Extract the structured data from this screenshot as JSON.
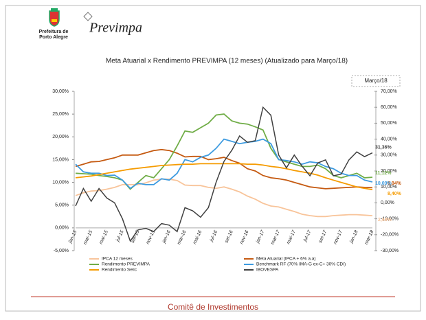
{
  "header": {
    "org_line1": "Prefeitura de",
    "org_line2": "Porto Alegre",
    "brand": "Previmpa"
  },
  "footer": "Comitê de Investimentos",
  "chart_data": {
    "type": "line",
    "title": "Meta Atuarial x Rendimento PREVIMPA (12 meses) (Atualizado para Março/18)",
    "annotation": "Março/18",
    "categories": [
      "jan-15",
      null,
      "mar-15",
      null,
      "mai-15",
      null,
      "jul-15",
      null,
      "set-15",
      null,
      "nov-15",
      null,
      "jan-16",
      null,
      "mar-16",
      null,
      "mai-16",
      null,
      "jul-16",
      null,
      "set-16",
      null,
      "nov-16",
      null,
      "jan-17",
      null,
      "mar-17",
      null,
      "mai-17",
      null,
      "jul-17",
      null,
      "set-17",
      null,
      "nov-17",
      null,
      "jan-18",
      null,
      "mar-18"
    ],
    "ylim": [
      -5,
      30
    ],
    "yticks": [
      {
        "value": -5,
        "label": "-5,00%"
      },
      {
        "value": 0,
        "label": "0,00%"
      },
      {
        "value": 5,
        "label": "5,00%"
      },
      {
        "value": 10,
        "label": "10,00%"
      },
      {
        "value": 15,
        "label": "15,00%"
      },
      {
        "value": 20,
        "label": "20,00%"
      },
      {
        "value": 25,
        "label": "25,00%"
      },
      {
        "value": 30,
        "label": "30,00%"
      }
    ],
    "y2lim": [
      -30,
      70
    ],
    "y2ticks": [
      {
        "value": -30,
        "label": "-30,00%"
      },
      {
        "value": -20,
        "label": "-20,00%"
      },
      {
        "value": -10,
        "label": "-10,00%"
      },
      {
        "value": 0,
        "label": "0,00%"
      },
      {
        "value": 10,
        "label": "10,00%"
      },
      {
        "value": 20,
        "label": "20,00%"
      },
      {
        "value": 30,
        "label": "30,00%"
      },
      {
        "value": 40,
        "label": "40,00%"
      },
      {
        "value": 50,
        "label": "50,00%"
      },
      {
        "value": 60,
        "label": "60,00%"
      },
      {
        "value": 70,
        "label": "70,00%"
      }
    ],
    "grid": false,
    "legend": "bottom",
    "series": [
      {
        "name": "IPCA 12 meses",
        "color": "#f8c49a",
        "values": [
          7.1,
          7.7,
          8.1,
          8.2,
          8.5,
          8.9,
          9.5,
          9.5,
          9.5,
          9.9,
          10.5,
          10.7,
          10.7,
          10.4,
          9.4,
          9.3,
          9.3,
          8.9,
          8.7,
          9.0,
          8.5,
          7.9,
          7.0,
          6.3,
          5.4,
          4.8,
          4.6,
          4.1,
          3.6,
          3.0,
          2.7,
          2.5,
          2.5,
          2.7,
          2.8,
          2.9,
          2.9,
          2.8,
          2.68
        ],
        "value_labels": [
          null,
          null,
          null,
          null,
          null,
          null,
          null,
          null,
          null,
          null,
          null,
          null,
          null,
          null,
          null,
          null,
          null,
          null,
          null,
          null,
          null,
          null,
          null,
          null,
          null,
          null,
          null,
          null,
          null,
          null,
          null,
          null,
          null,
          null,
          null,
          null,
          null,
          null,
          "2,68%"
        ]
      },
      {
        "name": "Meta Atuarial (IPCA + 6% a.a)",
        "color": "#c55a11",
        "values": [
          13.5,
          14.0,
          14.5,
          14.6,
          15.0,
          15.4,
          16.0,
          16.0,
          16.0,
          16.5,
          17.0,
          17.2,
          17.0,
          16.4,
          15.6,
          15.7,
          15.7,
          15.0,
          15.2,
          15.5,
          14.8,
          14.2,
          13.0,
          12.5,
          11.5,
          11.0,
          10.8,
          10.5,
          10.0,
          9.5,
          9.0,
          8.8,
          8.6,
          8.7,
          8.8,
          8.9,
          9.0,
          8.9,
          8.84
        ],
        "value_labels": [
          null,
          null,
          null,
          null,
          null,
          null,
          null,
          null,
          null,
          null,
          null,
          null,
          null,
          null,
          null,
          null,
          null,
          null,
          null,
          null,
          null,
          null,
          null,
          null,
          null,
          null,
          null,
          null,
          null,
          null,
          null,
          null,
          null,
          null,
          null,
          null,
          null,
          null,
          "8,84%"
        ]
      },
      {
        "name": "Rendimento PREVIMPA",
        "color": "#70ad47",
        "values": [
          12.0,
          11.9,
          11.8,
          11.5,
          11.3,
          11.0,
          10.5,
          8.5,
          10.0,
          11.5,
          11.0,
          13.0,
          15.0,
          18.0,
          21.3,
          21.0,
          22.0,
          23.0,
          24.8,
          25.0,
          23.5,
          23.0,
          22.8,
          22.2,
          21.5,
          17.5,
          15.0,
          14.5,
          14.0,
          13.5,
          13.5,
          13.8,
          13.0,
          11.5,
          11.0,
          11.5,
          12.0,
          11.0,
          11.12
        ],
        "value_labels": [
          null,
          null,
          null,
          null,
          null,
          null,
          null,
          null,
          null,
          null,
          null,
          null,
          null,
          null,
          null,
          null,
          null,
          null,
          null,
          null,
          null,
          null,
          null,
          null,
          null,
          null,
          null,
          null,
          null,
          null,
          null,
          null,
          null,
          null,
          null,
          null,
          null,
          null,
          "11,12%"
        ]
      },
      {
        "name": "Benchmark RF (70% IMA-G ex-C+ 30% CDI)",
        "color": "#3d9be0",
        "values": [
          14.0,
          12.3,
          12.0,
          12.0,
          11.5,
          11.6,
          10.5,
          8.7,
          9.8,
          9.5,
          9.5,
          10.8,
          10.5,
          12.0,
          15.0,
          14.5,
          15.5,
          16.0,
          17.5,
          19.5,
          19.0,
          18.5,
          18.8,
          19.0,
          19.5,
          18.5,
          15.0,
          14.8,
          14.5,
          14.0,
          14.5,
          14.3,
          13.5,
          13.0,
          12.0,
          11.5,
          11.5,
          10.5,
          10.09
        ],
        "value_labels": [
          null,
          null,
          null,
          null,
          null,
          null,
          null,
          null,
          null,
          null,
          null,
          null,
          null,
          null,
          null,
          null,
          null,
          null,
          null,
          null,
          null,
          null,
          null,
          null,
          null,
          null,
          null,
          null,
          null,
          null,
          null,
          null,
          null,
          null,
          null,
          null,
          null,
          null,
          "10,09%"
        ]
      },
      {
        "name": "Rendimento Selic",
        "color": "#f59b00",
        "values": [
          11.0,
          11.2,
          11.4,
          11.7,
          12.0,
          12.3,
          12.6,
          12.9,
          13.1,
          13.3,
          13.5,
          13.7,
          13.8,
          13.9,
          14.0,
          14.0,
          14.1,
          14.1,
          14.1,
          14.1,
          14.1,
          14.1,
          14.0,
          14.0,
          13.8,
          13.5,
          13.3,
          13.0,
          12.6,
          12.3,
          12.0,
          11.6,
          11.0,
          10.5,
          10.0,
          9.5,
          9.0,
          8.7,
          8.4
        ],
        "value_labels": [
          null,
          null,
          null,
          null,
          null,
          null,
          null,
          null,
          null,
          null,
          null,
          null,
          null,
          null,
          null,
          null,
          null,
          null,
          null,
          null,
          null,
          null,
          null,
          null,
          null,
          null,
          null,
          null,
          null,
          null,
          null,
          null,
          null,
          null,
          null,
          null,
          null,
          null,
          "8,40%"
        ]
      },
      {
        "name": "IBOVESPA",
        "color": "#404040",
        "axis": "y2",
        "values": [
          -2,
          9,
          1,
          9,
          3,
          0,
          -10,
          -24,
          -17,
          -16,
          -18,
          -13,
          -14,
          -18,
          -3,
          -5,
          -9,
          -3,
          13,
          26,
          33,
          42,
          38,
          39,
          60,
          55,
          30,
          22,
          30,
          23,
          17,
          25,
          27,
          17,
          18,
          27,
          32,
          29,
          31.36
        ],
        "value_labels": [
          null,
          null,
          null,
          null,
          null,
          null,
          null,
          null,
          null,
          null,
          null,
          null,
          null,
          null,
          null,
          null,
          null,
          null,
          null,
          null,
          null,
          null,
          null,
          null,
          null,
          null,
          null,
          null,
          null,
          null,
          null,
          null,
          null,
          null,
          null,
          null,
          null,
          null,
          "31,36%"
        ]
      }
    ]
  }
}
